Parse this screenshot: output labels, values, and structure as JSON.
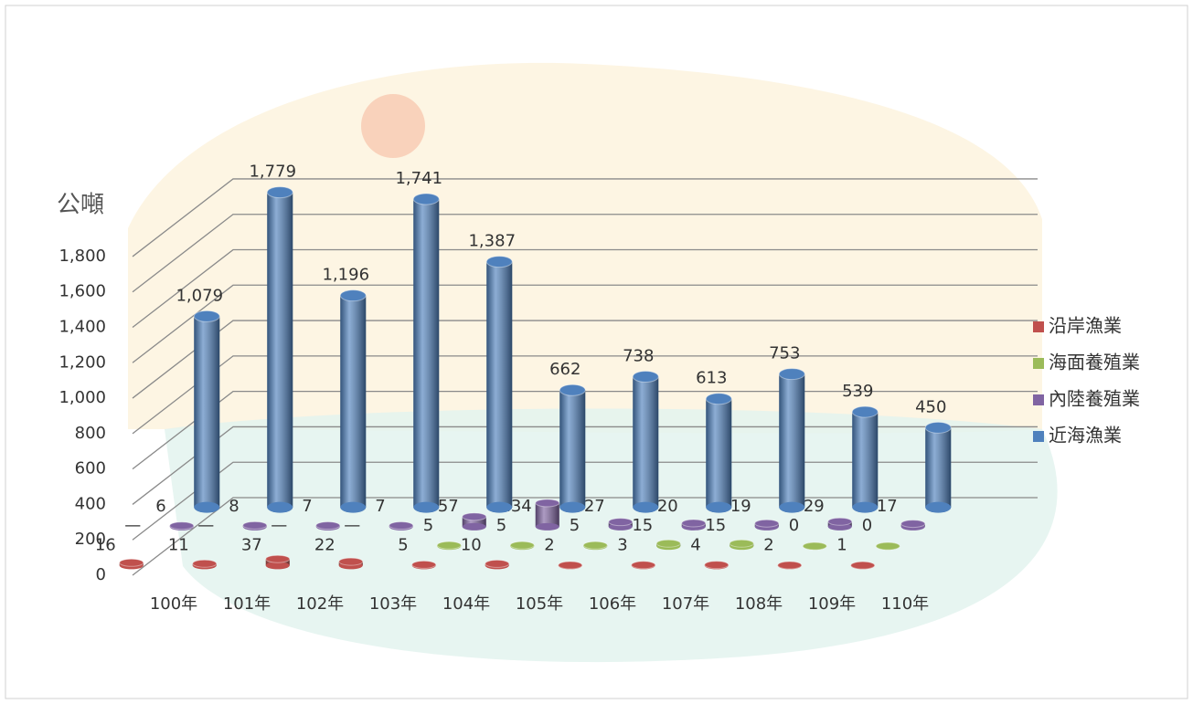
{
  "chart_data": {
    "type": "bar3d",
    "y_label": "公噸",
    "categories": [
      "100年",
      "101年",
      "102年",
      "103年",
      "104年",
      "105年",
      "106年",
      "107年",
      "108年",
      "109年",
      "110年"
    ],
    "series": [
      {
        "name": "沿岸漁業",
        "color": "#c0504d",
        "values": [
          16,
          11,
          37,
          22,
          5,
          10,
          2,
          3,
          4,
          2,
          1
        ]
      },
      {
        "name": "海面養殖業",
        "color": "#9bbb59",
        "values": [
          null,
          null,
          null,
          null,
          5,
          5,
          5,
          15,
          15,
          0,
          0
        ],
        "value_labels": [
          "—",
          "—",
          "—",
          "—",
          "5",
          "5",
          "5",
          "15",
          "15",
          "0",
          "0"
        ]
      },
      {
        "name": "內陸養殖業",
        "color": "#8064a2",
        "values": [
          6,
          8,
          7,
          7,
          57,
          134,
          27,
          20,
          19,
          29,
          17
        ]
      },
      {
        "name": "近海漁業",
        "color": "#4f81bd",
        "values": [
          1079,
          1779,
          1196,
          1741,
          1387,
          662,
          738,
          613,
          753,
          539,
          450
        ],
        "value_labels": [
          "1,079",
          "1,779",
          "1,196",
          "1,741",
          "1,387",
          "662",
          "738",
          "613",
          "753",
          "539",
          "450"
        ]
      }
    ],
    "ylim": [
      0,
      2000
    ],
    "yticks": [
      0,
      200,
      400,
      600,
      800,
      {
        "value": 1000,
        "label": "1,000"
      },
      {
        "value": 1200,
        "label": "1,200"
      },
      {
        "value": 1400,
        "label": "1,400"
      },
      {
        "value": 1600,
        "label": "1,600"
      },
      {
        "value": 1800,
        "label": "1,800"
      }
    ],
    "grid": true,
    "legend": "right"
  }
}
